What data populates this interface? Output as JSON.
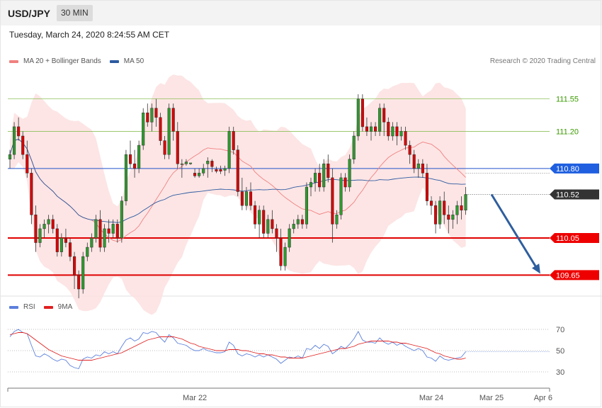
{
  "header": {
    "symbol": "USD/JPY",
    "timeframe": "30 MIN"
  },
  "timestamp": "Tuesday, March 24, 2020 8:24:55 AM CET",
  "copyright": "Research © 2020 Trading Central",
  "colors": {
    "bullish": "#2e9a2e",
    "bearish": "#d80000",
    "ma20": "#f08080",
    "ma50": "#2c5aa0",
    "band": "#fde0e0",
    "resistance": "#8dc05a",
    "pivot": "#2255cc",
    "support": "#e00000",
    "rsi": "#5b7fdb",
    "rsi_ma": "#e02020",
    "arrow": "#2e5e9e"
  },
  "chart_data": [
    {
      "type": "candlestick",
      "legend": [
        {
          "label": "MA 20 + Bollinger Bands",
          "color": "#f08080"
        },
        {
          "label": "MA 50",
          "color": "#2c5aa0"
        }
      ],
      "ylim": [
        109.5,
        111.7
      ],
      "levels": [
        {
          "value": 111.55,
          "label": "111.55",
          "kind": "resistance"
        },
        {
          "value": 111.2,
          "label": "111.20",
          "kind": "resistance"
        },
        {
          "value": 110.8,
          "label": "110.80",
          "kind": "pivot"
        },
        {
          "value": 110.52,
          "label": "110.52",
          "kind": "last"
        },
        {
          "value": 110.05,
          "label": "110.05",
          "kind": "support"
        },
        {
          "value": 109.65,
          "label": "109.65",
          "kind": "support"
        }
      ],
      "x_ticks": [
        {
          "label": "Mar 22",
          "index": 43
        },
        {
          "label": "Mar 24",
          "index": 98
        },
        {
          "label": "Mar 25",
          "index": 112
        },
        {
          "label": "Apr 6",
          "index": 124
        }
      ],
      "x_range": [
        0,
        126
      ],
      "forecast_arrow": {
        "from": {
          "index": 112,
          "value": 110.52
        },
        "to": {
          "index": 125,
          "value": 109.65
        }
      },
      "ohlc": [
        [
          110.9,
          111.0,
          110.8,
          110.95
        ],
        [
          110.95,
          111.3,
          110.9,
          111.25
        ],
        [
          111.25,
          111.35,
          111.1,
          111.15
        ],
        [
          111.15,
          111.2,
          110.9,
          110.95
        ],
        [
          110.95,
          111.1,
          110.7,
          110.75
        ],
        [
          110.75,
          110.8,
          110.2,
          110.3
        ],
        [
          110.3,
          110.4,
          109.9,
          110.0
        ],
        [
          110.0,
          110.2,
          109.95,
          110.15
        ],
        [
          110.15,
          110.25,
          110.05,
          110.2
        ],
        [
          110.2,
          110.3,
          110.1,
          110.25
        ],
        [
          110.25,
          110.3,
          110.1,
          110.15
        ],
        [
          110.15,
          110.2,
          109.85,
          109.9
        ],
        [
          109.9,
          110.1,
          109.85,
          110.05
        ],
        [
          110.05,
          110.15,
          109.95,
          110.0
        ],
        [
          110.0,
          110.05,
          109.8,
          109.85
        ],
        [
          109.85,
          109.9,
          109.5,
          109.65
        ],
        [
          109.65,
          109.7,
          109.4,
          109.5
        ],
        [
          109.5,
          109.9,
          109.45,
          109.85
        ],
        [
          109.85,
          110.0,
          109.8,
          109.95
        ],
        [
          109.95,
          110.1,
          109.9,
          110.05
        ],
        [
          110.05,
          110.3,
          110.0,
          110.25
        ],
        [
          110.25,
          110.35,
          109.9,
          109.95
        ],
        [
          109.95,
          110.2,
          109.9,
          110.15
        ],
        [
          110.15,
          110.25,
          110.0,
          110.1
        ],
        [
          110.1,
          110.25,
          110.05,
          110.2
        ],
        [
          110.2,
          110.25,
          110.0,
          110.05
        ],
        [
          110.05,
          110.5,
          110.0,
          110.45
        ],
        [
          110.45,
          111.0,
          110.4,
          110.95
        ],
        [
          110.95,
          111.1,
          110.8,
          110.85
        ],
        [
          110.85,
          111.0,
          110.7,
          110.8
        ],
        [
          110.8,
          111.1,
          110.75,
          111.05
        ],
        [
          111.05,
          111.45,
          111.0,
          111.4
        ],
        [
          111.4,
          111.5,
          111.25,
          111.3
        ],
        [
          111.3,
          111.5,
          111.2,
          111.45
        ],
        [
          111.45,
          111.55,
          111.25,
          111.35
        ],
        [
          111.35,
          111.4,
          111.05,
          111.1
        ],
        [
          111.1,
          111.15,
          110.9,
          110.95
        ],
        [
          110.95,
          111.5,
          110.9,
          111.45
        ],
        [
          111.45,
          111.5,
          111.1,
          111.2
        ],
        [
          111.2,
          111.3,
          110.8,
          110.85
        ],
        [
          110.85,
          110.9,
          110.7,
          110.85
        ],
        [
          110.85,
          110.9,
          110.83,
          110.87
        ],
        [
          110.85,
          110.86,
          110.84,
          110.86
        ],
        [
          110.75,
          110.8,
          110.7,
          110.72
        ],
        [
          110.72,
          110.8,
          110.7,
          110.75
        ],
        [
          110.75,
          110.85,
          110.72,
          110.8
        ],
        [
          110.85,
          110.92,
          110.7,
          110.88
        ],
        [
          110.88,
          110.9,
          110.76,
          110.82
        ],
        [
          110.79,
          110.82,
          110.75,
          110.77
        ],
        [
          110.79,
          110.83,
          110.74,
          110.77
        ],
        [
          110.78,
          110.83,
          110.72,
          110.8
        ],
        [
          110.8,
          111.25,
          110.75,
          111.2
        ],
        [
          111.2,
          111.25,
          110.95,
          111.0
        ],
        [
          111.0,
          111.05,
          110.5,
          110.55
        ],
        [
          110.55,
          110.7,
          110.35,
          110.4
        ],
        [
          110.4,
          110.6,
          110.35,
          110.55
        ],
        [
          110.55,
          110.65,
          110.35,
          110.4
        ],
        [
          110.4,
          110.45,
          110.15,
          110.2
        ],
        [
          110.2,
          110.4,
          110.05,
          110.35
        ],
        [
          110.35,
          110.4,
          110.05,
          110.1
        ],
        [
          110.1,
          110.3,
          110.05,
          110.25
        ],
        [
          110.25,
          110.35,
          110.1,
          110.15
        ],
        [
          110.15,
          110.2,
          109.9,
          110.05
        ],
        [
          110.05,
          110.15,
          109.7,
          109.75
        ],
        [
          109.75,
          110.0,
          109.7,
          109.95
        ],
        [
          109.95,
          110.2,
          109.9,
          110.15
        ],
        [
          110.15,
          110.25,
          110.1,
          110.2
        ],
        [
          110.2,
          110.3,
          110.15,
          110.25
        ],
        [
          110.25,
          110.3,
          110.15,
          110.2
        ],
        [
          110.2,
          110.65,
          110.15,
          110.6
        ],
        [
          110.6,
          110.7,
          110.5,
          110.65
        ],
        [
          110.65,
          110.8,
          110.55,
          110.75
        ],
        [
          110.75,
          110.85,
          110.55,
          110.6
        ],
        [
          110.6,
          110.9,
          110.55,
          110.85
        ],
        [
          110.85,
          110.95,
          110.65,
          110.7
        ],
        [
          110.7,
          110.8,
          110.0,
          110.2
        ],
        [
          110.2,
          110.35,
          110.15,
          110.3
        ],
        [
          110.3,
          110.75,
          110.25,
          110.7
        ],
        [
          110.7,
          110.75,
          110.55,
          110.6
        ],
        [
          110.6,
          110.95,
          110.55,
          110.9
        ],
        [
          110.9,
          111.2,
          110.85,
          111.15
        ],
        [
          111.15,
          111.6,
          111.1,
          111.55
        ],
        [
          111.55,
          111.6,
          111.2,
          111.25
        ],
        [
          111.25,
          111.35,
          111.15,
          111.2
        ],
        [
          111.2,
          111.3,
          111.1,
          111.25
        ],
        [
          111.25,
          111.3,
          111.15,
          111.2
        ],
        [
          111.2,
          111.5,
          111.15,
          111.45
        ],
        [
          111.45,
          111.5,
          111.15,
          111.3
        ],
        [
          111.3,
          111.35,
          111.1,
          111.15
        ],
        [
          111.15,
          111.3,
          111.1,
          111.25
        ],
        [
          111.25,
          111.3,
          111.05,
          111.15
        ],
        [
          111.15,
          111.25,
          111.1,
          111.2
        ],
        [
          111.2,
          111.25,
          111.0,
          111.05
        ],
        [
          111.05,
          111.1,
          110.85,
          110.95
        ],
        [
          110.95,
          111.0,
          110.75,
          110.8
        ],
        [
          110.8,
          110.9,
          110.7,
          110.85
        ],
        [
          110.85,
          110.9,
          110.7,
          110.75
        ],
        [
          110.75,
          110.85,
          110.4,
          110.45
        ],
        [
          110.45,
          110.5,
          110.3,
          110.4
        ],
        [
          110.4,
          110.45,
          110.1,
          110.2
        ],
        [
          110.2,
          110.5,
          110.15,
          110.45
        ],
        [
          110.45,
          110.55,
          110.2,
          110.3
        ],
        [
          110.3,
          110.4,
          110.1,
          110.25
        ],
        [
          110.25,
          110.35,
          110.15,
          110.3
        ],
        [
          110.3,
          110.45,
          110.2,
          110.4
        ],
        [
          110.4,
          110.5,
          110.25,
          110.35
        ],
        [
          110.35,
          110.6,
          110.3,
          110.52
        ]
      ]
    },
    {
      "type": "line",
      "legend": [
        {
          "label": "RSI",
          "color": "#5b7fdb"
        },
        {
          "label": "9MA",
          "color": "#e02020"
        }
      ],
      "ylim": [
        20,
        80
      ],
      "y_ticks": [
        70,
        50,
        30
      ],
      "series": [
        {
          "name": "RSI",
          "values": [
            63,
            68,
            70,
            67,
            66,
            55,
            45,
            44,
            47,
            45,
            42,
            40,
            42,
            41,
            36,
            34,
            33,
            42,
            44,
            43,
            46,
            45,
            49,
            47,
            49,
            47,
            54,
            60,
            62,
            59,
            61,
            67,
            66,
            68,
            67,
            62,
            58,
            65,
            62,
            57,
            56,
            55,
            52,
            50,
            50,
            52,
            50,
            49,
            48,
            48,
            49,
            58,
            55,
            47,
            45,
            47,
            46,
            44,
            46,
            44,
            46,
            44,
            42,
            38,
            41,
            44,
            43,
            45,
            43,
            52,
            51,
            55,
            52,
            56,
            54,
            47,
            50,
            54,
            52,
            56,
            61,
            68,
            60,
            58,
            58,
            57,
            62,
            58,
            56,
            58,
            55,
            57,
            54,
            52,
            50,
            52,
            50,
            44,
            43,
            40,
            45,
            42,
            41,
            42,
            43,
            44,
            49
          ]
        },
        {
          "name": "9MA",
          "values": [
            65,
            66,
            67,
            67,
            66,
            63,
            60,
            57,
            54,
            51,
            49,
            47,
            45,
            44,
            43,
            42,
            41,
            41,
            41,
            41,
            42,
            43,
            44,
            45,
            46,
            47,
            48,
            50,
            52,
            54,
            56,
            58,
            60,
            61,
            62,
            63,
            63,
            63,
            63,
            62,
            61,
            59,
            57,
            56,
            54,
            53,
            52,
            51,
            50,
            50,
            50,
            51,
            51,
            51,
            50,
            50,
            49,
            48,
            47,
            47,
            46,
            46,
            45,
            44,
            44,
            43,
            43,
            43,
            43,
            44,
            45,
            46,
            47,
            48,
            49,
            50,
            51,
            52,
            52,
            53,
            54,
            56,
            57,
            58,
            59,
            59,
            59,
            59,
            59,
            58,
            58,
            57,
            57,
            56,
            55,
            54,
            53,
            52,
            50,
            48,
            47,
            45,
            44,
            43,
            42,
            42,
            43
          ]
        }
      ]
    }
  ]
}
